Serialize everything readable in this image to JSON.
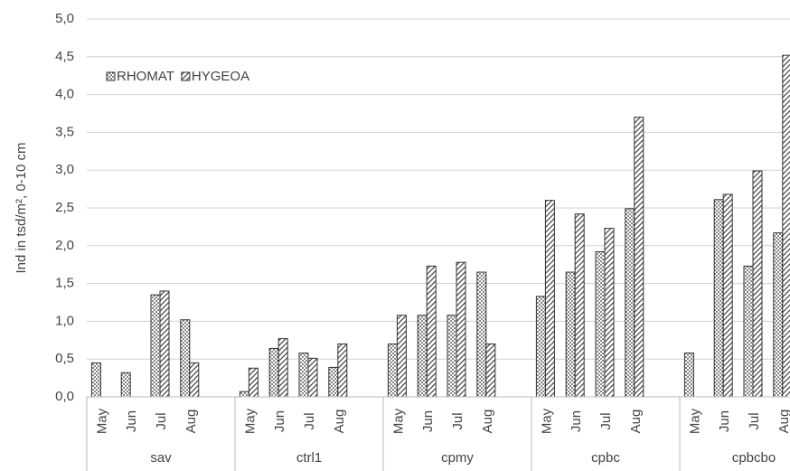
{
  "chart_data": {
    "type": "bar",
    "y_label": "Ind in tsd/m², 0-10 cm",
    "groups": [
      "sav",
      "ctrl1",
      "cpmy",
      "cpbc",
      "cpbcbo"
    ],
    "categories": [
      "May",
      "Jun",
      "Jul",
      "Aug",
      "May",
      "Jun",
      "Jul",
      "Aug",
      "May",
      "Jun",
      "Jul",
      "Aug",
      "May",
      "Jun",
      "Jul",
      "Aug",
      "May",
      "Jun",
      "Jul",
      "Aug"
    ],
    "series": [
      {
        "name": "RHOMAT",
        "color": "#333333",
        "pattern": "dots",
        "values": [
          0.45,
          0.32,
          1.35,
          1.02,
          0.07,
          0.64,
          0.58,
          0.39,
          0.7,
          1.08,
          1.08,
          1.65,
          1.33,
          1.65,
          1.92,
          2.49,
          0.58,
          2.61,
          1.73,
          2.17
        ]
      },
      {
        "name": "HYGEOA",
        "color": "#333333",
        "pattern": "hatch",
        "values": [
          null,
          null,
          1.4,
          0.45,
          0.38,
          0.77,
          0.51,
          0.7,
          1.08,
          1.73,
          1.78,
          0.7,
          2.6,
          2.42,
          2.23,
          3.7,
          null,
          2.68,
          2.99,
          4.52
        ]
      }
    ],
    "ylim": [
      0,
      5
    ],
    "yticks": [
      {
        "value": 0,
        "label": "0,0"
      },
      {
        "value": 0.5,
        "label": "0,5"
      },
      {
        "value": 1,
        "label": "1,0"
      },
      {
        "value": 1.5,
        "label": "1,5"
      },
      {
        "value": 2,
        "label": "2,0"
      },
      {
        "value": 2.5,
        "label": "2,5"
      },
      {
        "value": 3,
        "label": "3,0"
      },
      {
        "value": 3.5,
        "label": "3,5"
      },
      {
        "value": 4,
        "label": "4,0"
      },
      {
        "value": 4.5,
        "label": "4,5"
      },
      {
        "value": 5,
        "label": "5,0"
      }
    ],
    "grid": true,
    "legend": "top-left"
  }
}
